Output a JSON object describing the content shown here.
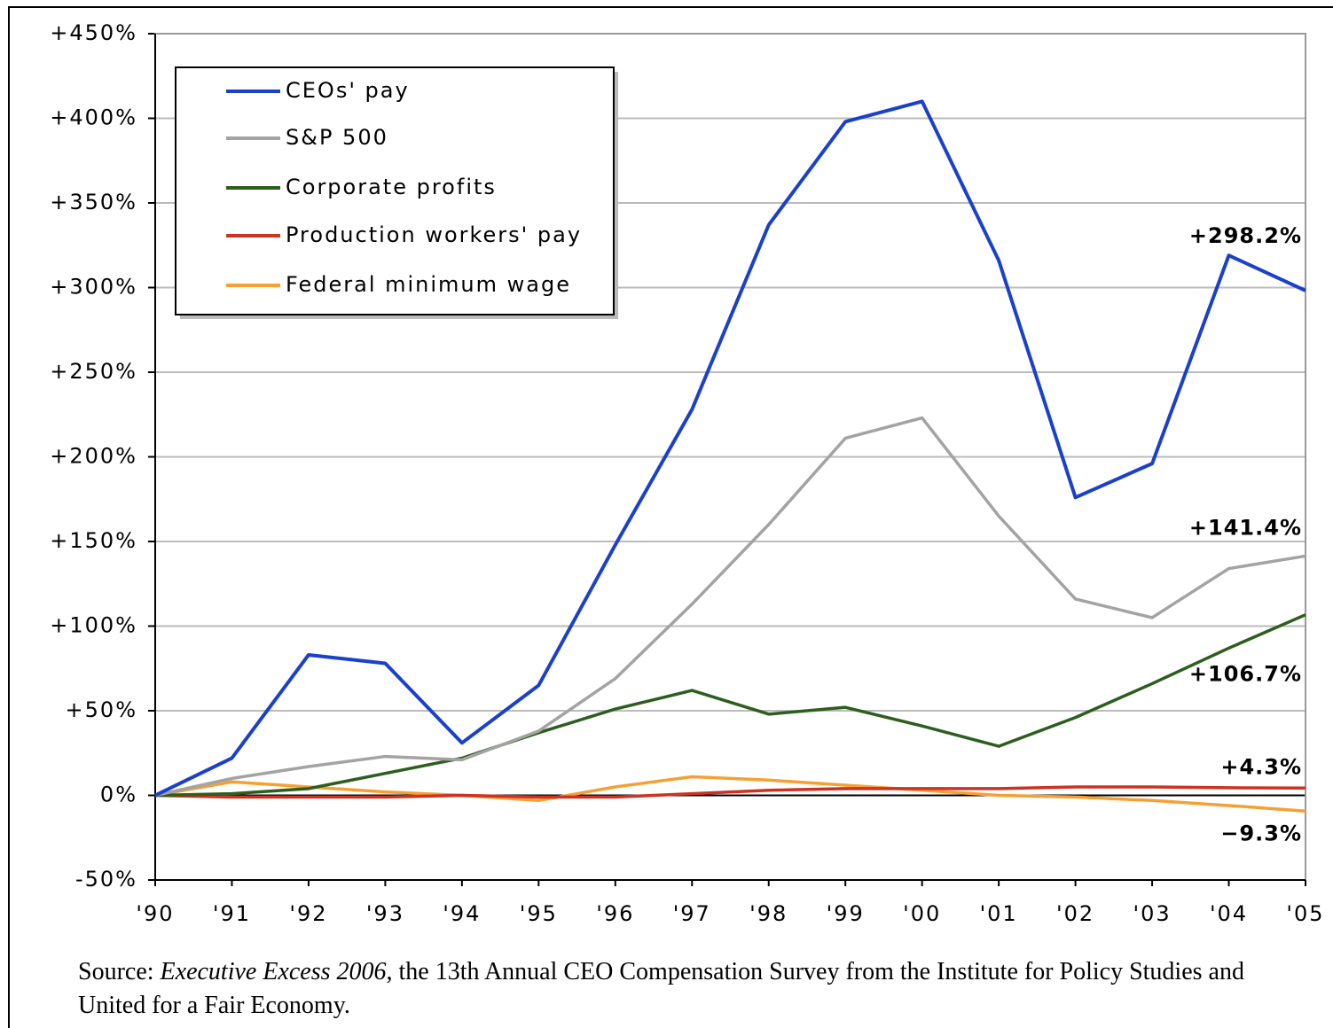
{
  "chart_data": {
    "type": "line",
    "categories": [
      "'90",
      "'91",
      "'92",
      "'93",
      "'94",
      "'95",
      "'96",
      "'97",
      "'98",
      "'99",
      "'00",
      "'01",
      "'02",
      "'03",
      "'04",
      "'05"
    ],
    "series": [
      {
        "name": "CEOs' pay",
        "color": "#1a40cc",
        "values": [
          0,
          22,
          83,
          78,
          31,
          65,
          148,
          228,
          337,
          398,
          410,
          316,
          176,
          196,
          319,
          298.2
        ],
        "value_labels": [
          null,
          null,
          null,
          null,
          null,
          null,
          null,
          null,
          null,
          null,
          null,
          null,
          null,
          null,
          null,
          "+298.2%"
        ]
      },
      {
        "name": "S&P 500",
        "color": "#a3a3a3",
        "values": [
          0,
          10,
          17,
          23,
          21,
          38,
          69,
          113,
          160,
          211,
          223,
          165,
          116,
          105,
          134,
          141.4
        ],
        "value_labels": [
          null,
          null,
          null,
          null,
          null,
          null,
          null,
          null,
          null,
          null,
          null,
          null,
          null,
          null,
          null,
          "+141.4%"
        ]
      },
      {
        "name": "Corporate profits",
        "color": "#2d5e1e",
        "values": [
          0,
          1,
          4,
          13,
          22,
          37,
          51,
          62,
          48,
          52,
          41,
          29,
          46,
          66,
          87,
          106.7
        ],
        "value_labels": [
          null,
          null,
          null,
          null,
          null,
          null,
          null,
          null,
          null,
          null,
          null,
          null,
          null,
          null,
          null,
          "+106.7%"
        ]
      },
      {
        "name": "Production workers' pay",
        "color": "#cc3322",
        "values": [
          0,
          -1,
          -1,
          -1,
          0,
          -1,
          -1,
          1,
          3,
          4,
          4,
          4,
          5,
          5,
          4.5,
          4.3
        ],
        "value_labels": [
          null,
          null,
          null,
          null,
          null,
          null,
          null,
          null,
          null,
          null,
          null,
          null,
          null,
          null,
          null,
          "+4.3%"
        ]
      },
      {
        "name": "Federal minimum wage",
        "color": "#f5a033",
        "values": [
          0,
          8,
          5,
          2,
          0,
          -3,
          5,
          11,
          9,
          6,
          3,
          0,
          -1,
          -3,
          -6,
          -9.3
        ],
        "value_labels": [
          null,
          null,
          null,
          null,
          null,
          null,
          null,
          null,
          null,
          null,
          null,
          null,
          null,
          null,
          null,
          "−9.3%"
        ]
      }
    ],
    "ylim": [
      -50,
      450
    ],
    "yticks": [
      {
        "value": -50,
        "label": "-50%"
      },
      {
        "value": 0,
        "label": "0%"
      },
      {
        "value": 50,
        "label": "+50%"
      },
      {
        "value": 100,
        "label": "+100%"
      },
      {
        "value": 150,
        "label": "+150%"
      },
      {
        "value": 200,
        "label": "+200%"
      },
      {
        "value": 250,
        "label": "+250%"
      },
      {
        "value": 300,
        "label": "+300%"
      },
      {
        "value": 350,
        "label": "+350%"
      },
      {
        "value": 400,
        "label": "+400%"
      },
      {
        "value": 450,
        "label": "+450%"
      }
    ],
    "grid": true,
    "legend": "upper left",
    "source": {
      "prefix": "Source: ",
      "title": "Executive Excess 2006",
      "rest": ", the 13th Annual CEO Compensation Survey from the Institute for Policy Studies and United for a Fair Economy."
    }
  }
}
